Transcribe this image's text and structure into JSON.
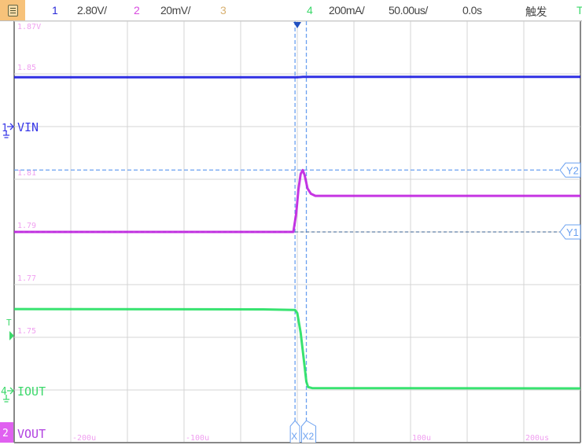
{
  "topbar": {
    "menu_icon": "menu-icon",
    "ch1": {
      "num": "1",
      "scale": "2.80V/",
      "color": "#2a2ad8"
    },
    "ch2": {
      "num": "2",
      "scale": "20mV/",
      "color": "#d84ae0"
    },
    "ch3": {
      "num": "3",
      "color": "#d8b070"
    },
    "ch4": {
      "num": "4",
      "scale": "200mA/",
      "color": "#3bd86a"
    },
    "timebase": "50.00us/",
    "delay": "0.0s",
    "trigger_label": "触发",
    "trigger_icon": "T"
  },
  "markers": {
    "ch1_num": "1",
    "ch1_name": "VIN",
    "ch4_num": "4",
    "ch4_name": "IOUT",
    "ch2_num": "2",
    "ch2_name": "VOUT",
    "trigger_level": "T",
    "cursor_x1": "X",
    "cursor_x2": "X2",
    "cursor_y1": "Y1",
    "cursor_y2": "Y2"
  },
  "chart_data": {
    "type": "line",
    "xlabel": "",
    "ylabel": "",
    "grid": true,
    "x_unit": "us",
    "xlim": [
      -250,
      250
    ],
    "x_ticks": [
      {
        "value": -200,
        "label": "-200u"
      },
      {
        "value": -100,
        "label": "-100u"
      },
      {
        "value": 100,
        "label": "100u"
      },
      {
        "value": 200,
        "label": "200us"
      }
    ],
    "y_ticks_vout": [
      {
        "value": 1.87,
        "label": "1.87V"
      },
      {
        "value": 1.85,
        "label": "1.85"
      },
      {
        "value": 1.81,
        "label": "1.81"
      },
      {
        "value": 1.79,
        "label": "1.79"
      },
      {
        "value": 1.77,
        "label": "1.77"
      },
      {
        "value": 1.75,
        "label": "1.75"
      }
    ],
    "vout_ylim": [
      1.71,
      1.87
    ],
    "series": [
      {
        "name": "VIN",
        "channel": 1,
        "unit": "V",
        "scale_per_div": 2.8,
        "color": "#1a1ae0",
        "points": [
          [
            -250,
            2.62
          ],
          [
            0,
            2.62
          ],
          [
            5,
            2.64
          ],
          [
            250,
            2.64
          ]
        ]
      },
      {
        "name": "VOUT",
        "channel": 2,
        "unit": "V",
        "scale_per_div": 0.02,
        "color": "#c020e0",
        "points": [
          [
            -250,
            1.79
          ],
          [
            -3.5,
            1.79
          ],
          [
            -1,
            1.797
          ],
          [
            1,
            1.806
          ],
          [
            3,
            1.812
          ],
          [
            4.8,
            1.8135
          ],
          [
            6.5,
            1.8115
          ],
          [
            9,
            1.8065
          ],
          [
            12,
            1.8045
          ],
          [
            16,
            1.8037
          ],
          [
            250,
            1.8037
          ]
        ]
      },
      {
        "name": "IOUT",
        "channel": 4,
        "unit": "mA",
        "scale_per_div": 200,
        "color": "#22e060",
        "points": [
          [
            -250,
            310
          ],
          [
            -30,
            309
          ],
          [
            -2,
            307
          ],
          [
            0,
            295
          ],
          [
            3,
            220
          ],
          [
            6,
            110
          ],
          [
            8,
            35
          ],
          [
            9.5,
            14
          ],
          [
            13,
            10
          ],
          [
            250,
            9
          ]
        ]
      }
    ],
    "cursors": {
      "x1": -2,
      "x2": 8,
      "y1": 1.79,
      "y2": 1.8135
    },
    "trigger_time": 0
  }
}
